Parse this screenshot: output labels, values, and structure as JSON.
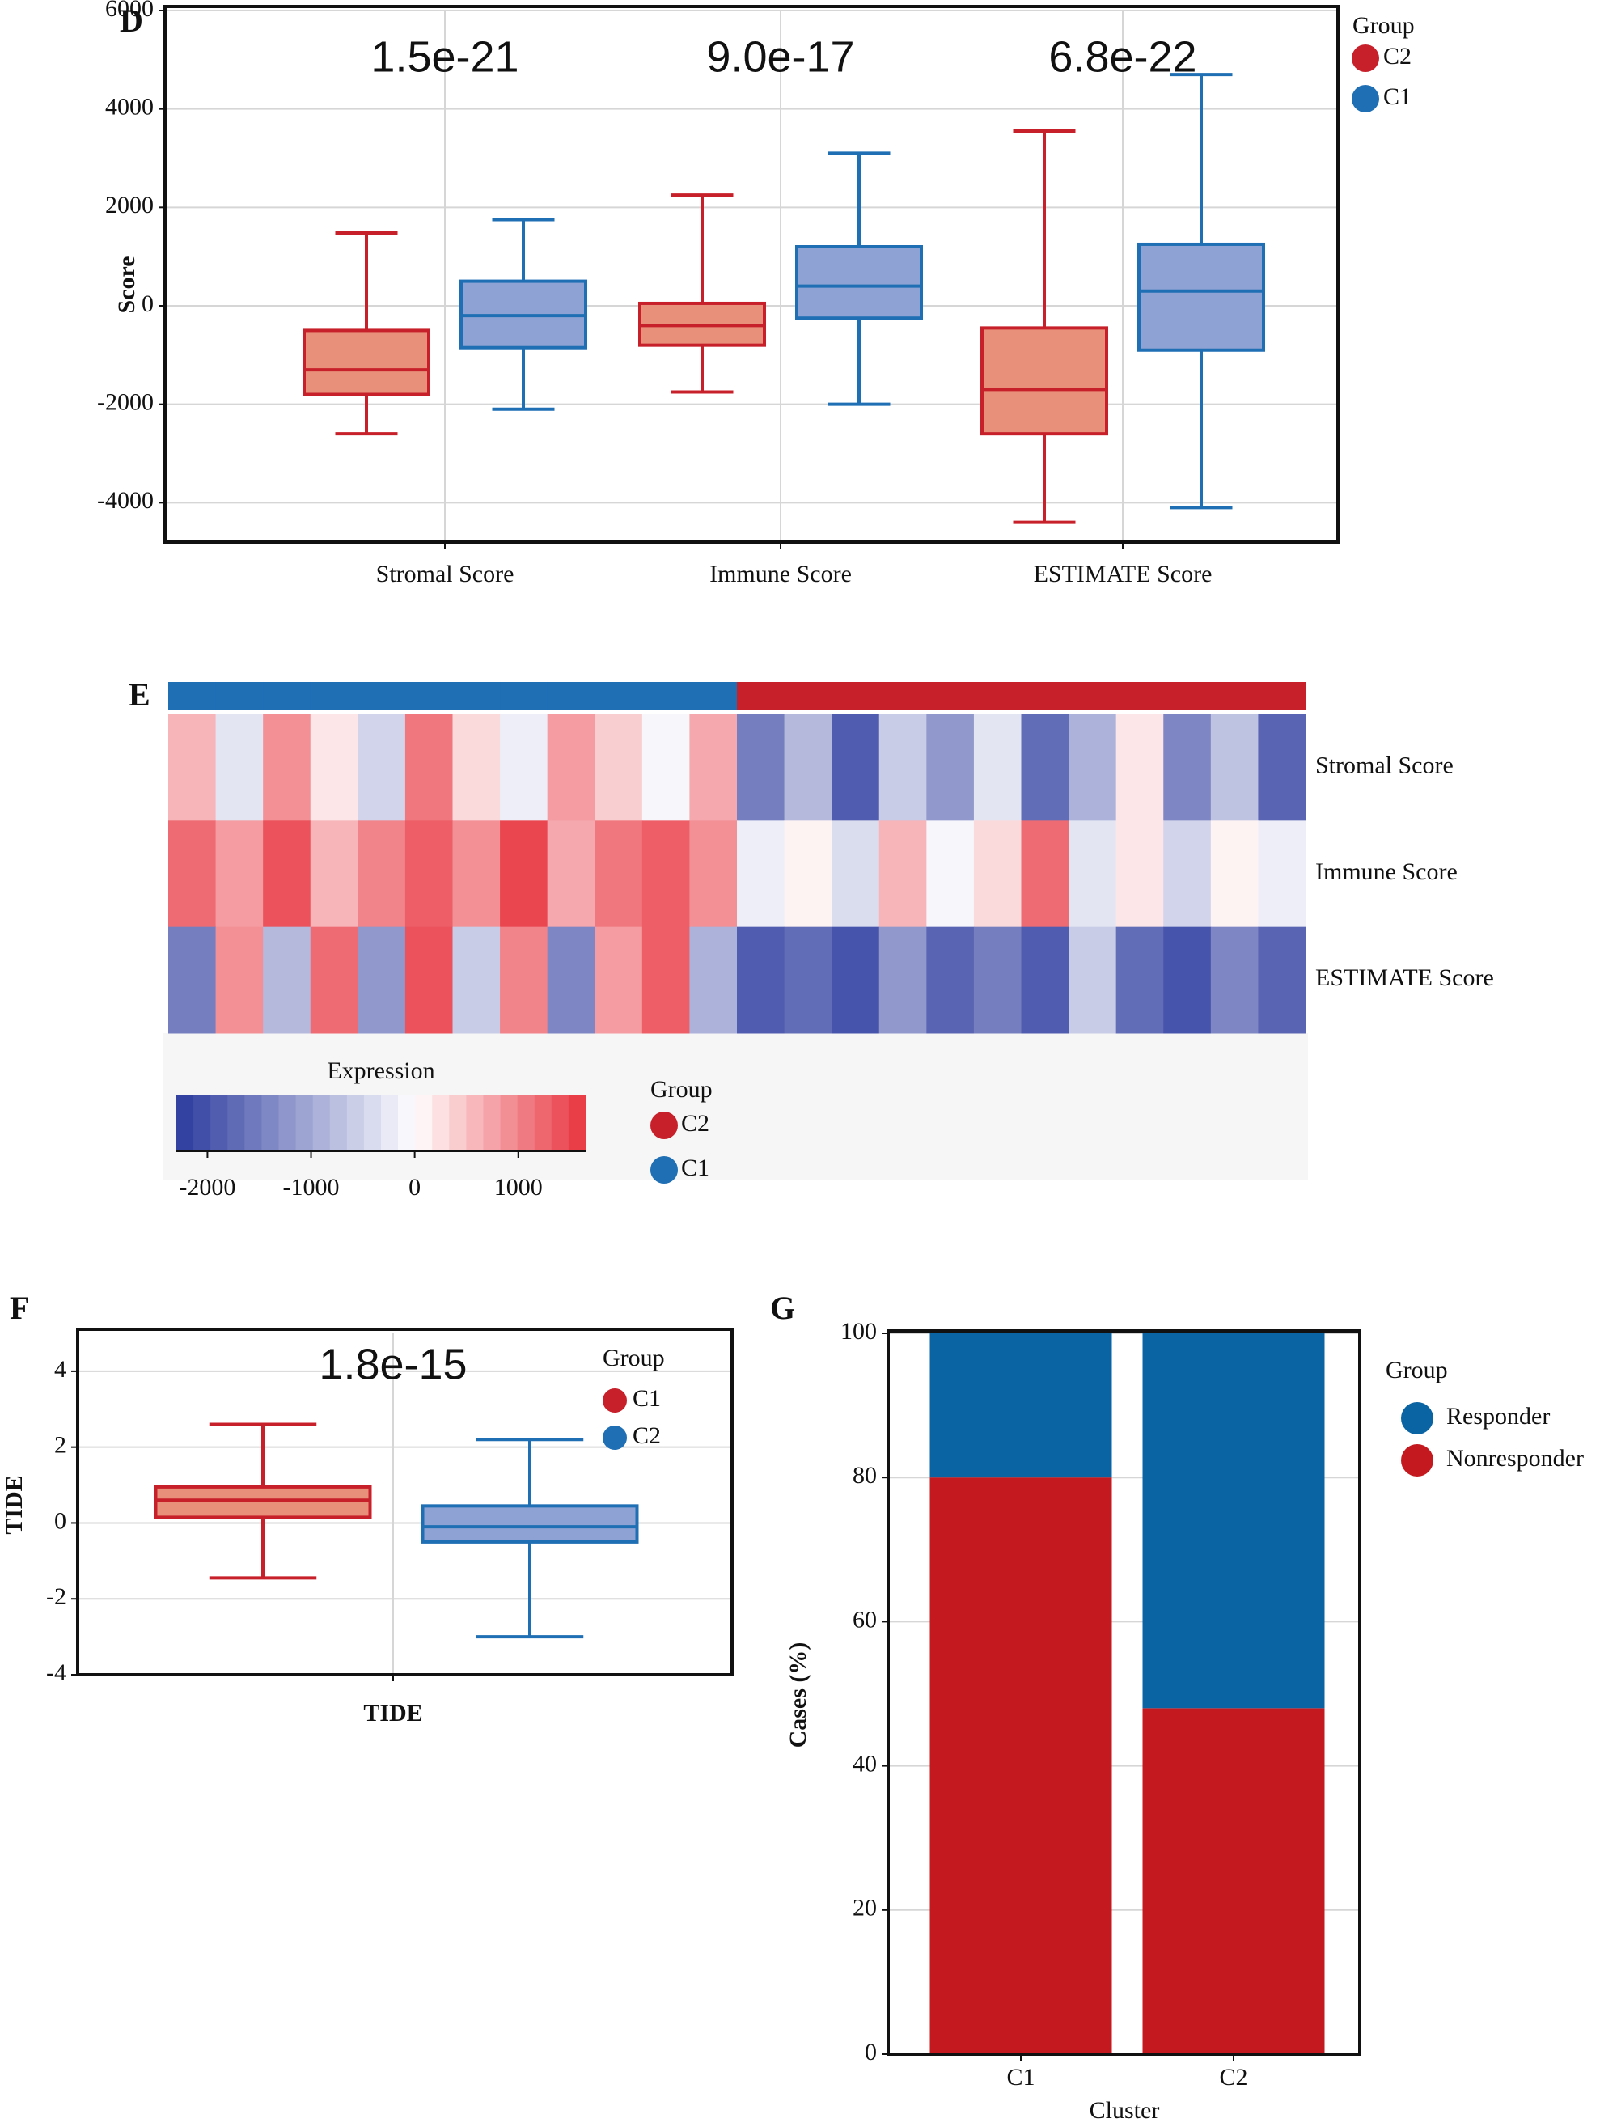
{
  "chart_data": [
    {
      "type": "box",
      "panel": "D",
      "ylabel": "Score",
      "categories": [
        "Stromal Score",
        "Immune Score",
        "ESTIMATE Score"
      ],
      "annotations": [
        "1.5e-21",
        "9.0e-17",
        "6.8e-22"
      ],
      "legend_title": "Group",
      "grid": true,
      "ylim": [
        -4800,
        6000
      ],
      "yticks": [
        -4000,
        -2000,
        0,
        2000,
        4000,
        6000
      ],
      "series": [
        {
          "name": "C2",
          "color": "#c8202a",
          "fill": "#e8907a",
          "min": [
            -2600,
            -1750,
            -4400
          ],
          "q1": [
            -1800,
            -800,
            -2600
          ],
          "median": [
            -1300,
            -400,
            -1700
          ],
          "q3": [
            -500,
            50,
            -450
          ],
          "max": [
            1480,
            2250,
            3550
          ]
        },
        {
          "name": "C1",
          "color": "#1f6fb5",
          "fill": "#8ea3d3",
          "min": [
            -2100,
            -2000,
            -4100
          ],
          "q1": [
            -850,
            -250,
            -900
          ],
          "median": [
            -200,
            400,
            300
          ],
          "q3": [
            500,
            1200,
            1250
          ],
          "max": [
            1750,
            3100,
            4700
          ]
        }
      ]
    },
    {
      "type": "heatmap",
      "panel": "E",
      "rows": [
        "Stromal Score",
        "Immune Score",
        "ESTIMATE Score"
      ],
      "values": [
        [
          600,
          -300,
          900,
          200,
          -500,
          1100,
          300,
          -200,
          800,
          400,
          -100,
          700,
          -1500,
          -800,
          -1900,
          -600,
          -1200,
          -300,
          -1700,
          -900,
          200,
          -1400,
          -700,
          -1800
        ],
        [
          1200,
          800,
          1400,
          600,
          1000,
          1300,
          900,
          1500,
          700,
          1100,
          1300,
          900,
          -200,
          100,
          -400,
          600,
          -100,
          300,
          1200,
          -300,
          200,
          -500,
          100,
          -200
        ],
        [
          -1500,
          900,
          -800,
          1200,
          -1200,
          1400,
          -600,
          1000,
          -1400,
          800,
          1300,
          -900,
          -1900,
          -1700,
          -2000,
          -1200,
          -1800,
          -1500,
          -1900,
          -600,
          -1700,
          -2000,
          -1400,
          -1800
        ]
      ],
      "column_groups": [
        "C1",
        "C1",
        "C1",
        "C1",
        "C1",
        "C1",
        "C1",
        "C1",
        "C1",
        "C1",
        "C1",
        "C1",
        "C2",
        "C2",
        "C2",
        "C2",
        "C2",
        "C2",
        "C2",
        "C2",
        "C2",
        "C2",
        "C2",
        "C2"
      ],
      "legend_title": "Group",
      "series": [
        {
          "name": "C2",
          "color": "#c8202a"
        },
        {
          "name": "C1",
          "color": "#1f6fb5"
        }
      ],
      "colorbar": {
        "title": "Expression",
        "lim": [
          -2300,
          1650
        ],
        "ticks": [
          -2000,
          -1000,
          0,
          1000
        ],
        "colors": [
          "#2b3a9e",
          "#ffffff",
          "#e8333e"
        ]
      }
    },
    {
      "type": "box",
      "panel": "F",
      "ylabel": "TIDE",
      "categories": [
        "TIDE"
      ],
      "annotations": [
        "1.8e-15"
      ],
      "legend_title": "Group",
      "grid": true,
      "ylim": [
        -4,
        5
      ],
      "yticks": [
        -4,
        -2,
        0,
        2,
        4
      ],
      "series": [
        {
          "name": "C1",
          "color": "#c8202a",
          "fill": "#e8907a",
          "min": [
            -1.45
          ],
          "q1": [
            0.15
          ],
          "median": [
            0.6
          ],
          "q3": [
            0.95
          ],
          "max": [
            2.6
          ]
        },
        {
          "name": "C2",
          "color": "#1f6fb5",
          "fill": "#8ea3d3",
          "min": [
            -3.0
          ],
          "q1": [
            -0.5
          ],
          "median": [
            -0.1
          ],
          "q3": [
            0.45
          ],
          "max": [
            2.2
          ]
        }
      ]
    },
    {
      "type": "stacked_bar",
      "panel": "G",
      "ylabel": "Cases (%)",
      "xlabel": "Cluster",
      "categories": [
        "C1",
        "C2"
      ],
      "legend_title": "Group",
      "grid": true,
      "ylim": [
        0,
        100
      ],
      "yticks": [
        0,
        20,
        40,
        60,
        80,
        100
      ],
      "series": [
        {
          "name": "Responder",
          "color": "#0a64a4",
          "values": [
            20,
            52
          ]
        },
        {
          "name": "Nonresponder",
          "color": "#c41a1f",
          "values": [
            80,
            48
          ]
        }
      ]
    }
  ]
}
